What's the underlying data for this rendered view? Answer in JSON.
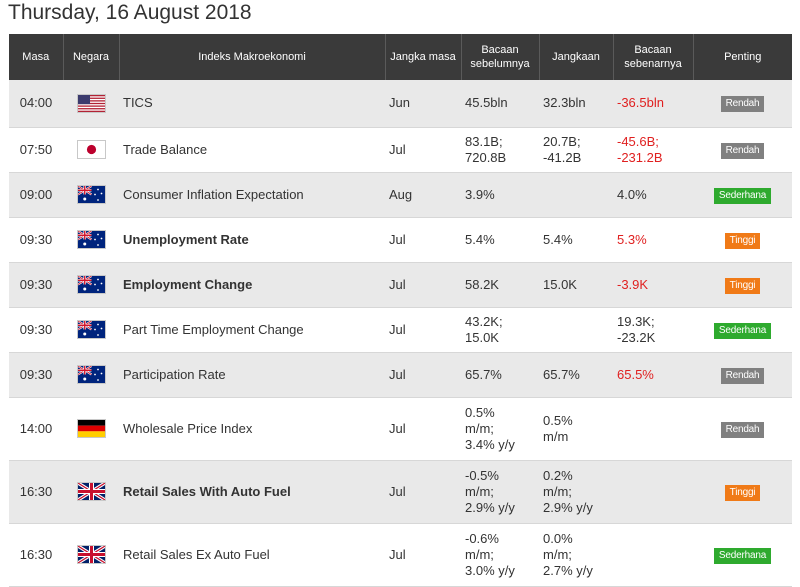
{
  "page_title": "Thursday, 16 August 2018",
  "columns": {
    "time": "Masa",
    "country": "Negara",
    "event": "Indeks Makroekonomi",
    "period": "Jangka masa",
    "previous": "Bacaan sebelumnya",
    "forecast": "Jangkaan",
    "actual": "Bacaan sebenarnya",
    "importance": "Penting"
  },
  "colors": {
    "header_bg": "#3a3a3a",
    "negative_text": "#e02020",
    "badge_low": "#808080",
    "badge_medium": "#2eaa2e",
    "badge_high": "#f07a17"
  },
  "rows": [
    {
      "time": "04:00",
      "country": "us-flag-icon",
      "event": "TICS",
      "bold": false,
      "period": "Jun",
      "previous": "45.5bln",
      "forecast": "32.3bln",
      "actual": "-36.5bln",
      "actual_negative": true,
      "importance": "Rendah",
      "importance_level": "low"
    },
    {
      "time": "07:50",
      "country": "jp-flag-icon",
      "event": "Trade Balance",
      "bold": false,
      "period": "Jul",
      "previous": "83.1B;\n720.8B",
      "forecast": "20.7B;\n-41.2B",
      "actual": "-45.6B;\n-231.2B",
      "actual_negative": true,
      "importance": "Rendah",
      "importance_level": "low"
    },
    {
      "time": "09:00",
      "country": "au-flag-icon",
      "event": "Consumer Inflation Expectation",
      "bold": false,
      "period": "Aug",
      "previous": "3.9%",
      "forecast": "",
      "actual": "4.0%",
      "actual_negative": false,
      "importance": "Sederhana",
      "importance_level": "medium"
    },
    {
      "time": "09:30",
      "country": "au-flag-icon",
      "event": "Unemployment Rate",
      "bold": true,
      "period": "Jul",
      "previous": "5.4%",
      "forecast": "5.4%",
      "actual": "5.3%",
      "actual_negative": true,
      "importance": "Tinggi",
      "importance_level": "high"
    },
    {
      "time": "09:30",
      "country": "au-flag-icon",
      "event": "Employment Change",
      "bold": true,
      "period": "Jul",
      "previous": "58.2K",
      "forecast": "15.0K",
      "actual": "-3.9K",
      "actual_negative": true,
      "importance": "Tinggi",
      "importance_level": "high"
    },
    {
      "time": "09:30",
      "country": "au-flag-icon",
      "event": "Part Time Employment Change",
      "bold": false,
      "period": "Jul",
      "previous": "43.2K;\n15.0K",
      "forecast": "",
      "actual": "19.3K;\n-23.2K",
      "actual_negative": false,
      "importance": "Sederhana",
      "importance_level": "medium"
    },
    {
      "time": "09:30",
      "country": "au-flag-icon",
      "event": "Participation Rate",
      "bold": false,
      "period": "Jul",
      "previous": "65.7%",
      "forecast": "65.7%",
      "actual": "65.5%",
      "actual_negative": true,
      "importance": "Rendah",
      "importance_level": "low"
    },
    {
      "time": "14:00",
      "country": "de-flag-icon",
      "event": "Wholesale Price Index",
      "bold": false,
      "period": "Jul",
      "previous": "0.5%\nm/m;\n3.4% y/y",
      "forecast": "0.5%\nm/m",
      "actual": "",
      "actual_negative": false,
      "importance": "Rendah",
      "importance_level": "low"
    },
    {
      "time": "16:30",
      "country": "gb-flag-icon",
      "event": "Retail Sales With Auto Fuel",
      "bold": true,
      "period": "Jul",
      "previous": "-0.5%\nm/m;\n2.9% y/y",
      "forecast": "0.2%\nm/m;\n2.9% y/y",
      "actual": "",
      "actual_negative": false,
      "importance": "Tinggi",
      "importance_level": "high"
    },
    {
      "time": "16:30",
      "country": "gb-flag-icon",
      "event": "Retail Sales Ex Auto Fuel",
      "bold": false,
      "period": "Jul",
      "previous": "-0.6%\nm/m;\n3.0% y/y",
      "forecast": "0.0%\nm/m;\n2.7% y/y",
      "actual": "",
      "actual_negative": false,
      "importance": "Sederhana",
      "importance_level": "medium"
    }
  ]
}
